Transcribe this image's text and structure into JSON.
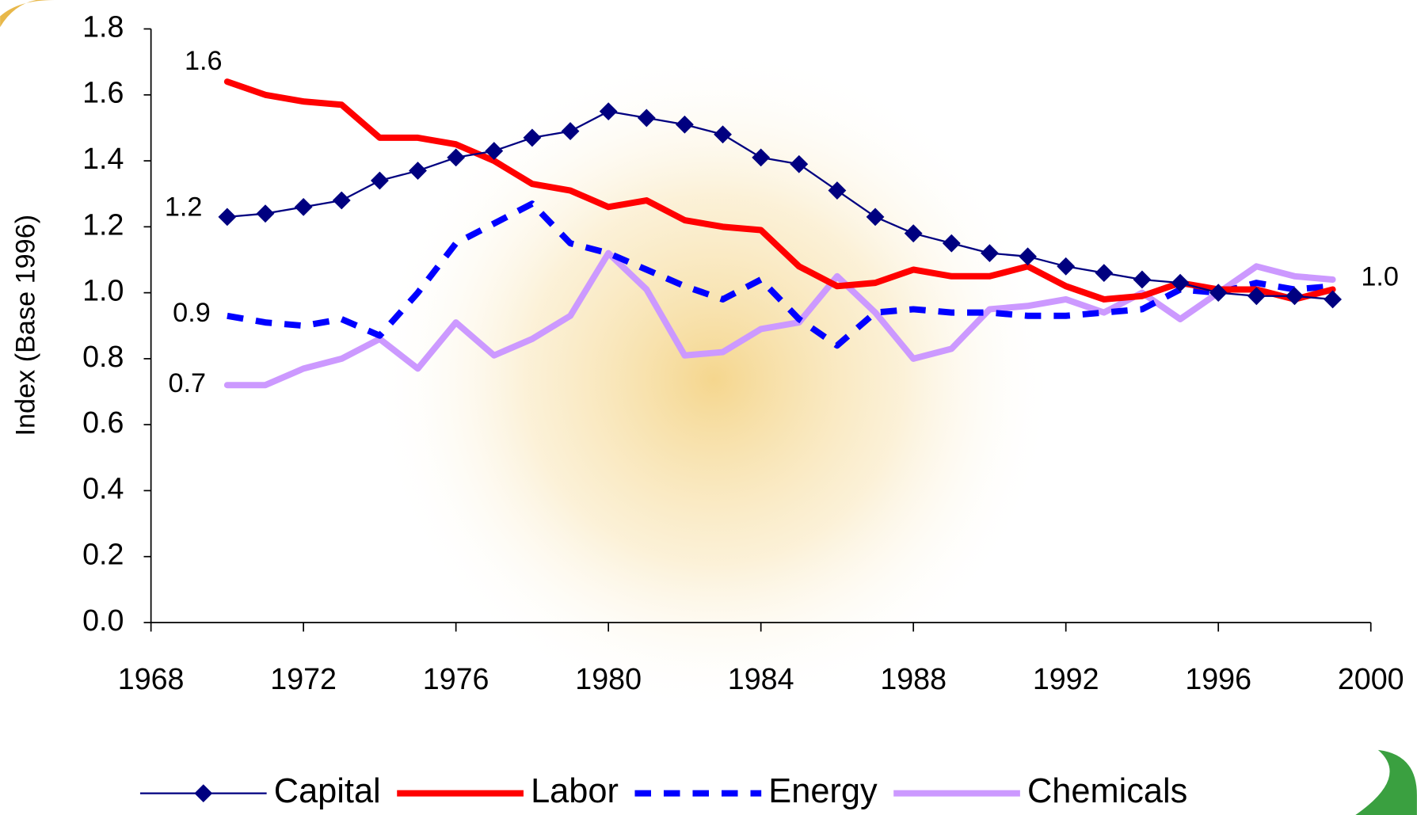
{
  "chart_data": {
    "type": "line",
    "ylabel": "Index (Base 1996)",
    "x": [
      1970,
      1971,
      1972,
      1973,
      1974,
      1975,
      1976,
      1977,
      1978,
      1979,
      1980,
      1981,
      1982,
      1983,
      1984,
      1985,
      1986,
      1987,
      1988,
      1989,
      1990,
      1991,
      1992,
      1993,
      1994,
      1995,
      1996,
      1997,
      1998,
      1999
    ],
    "series": [
      {
        "name": "Capital",
        "color": "#000080",
        "width": 2,
        "marker": "diamond",
        "values": [
          1.23,
          1.24,
          1.26,
          1.28,
          1.34,
          1.37,
          1.41,
          1.43,
          1.47,
          1.49,
          1.55,
          1.53,
          1.51,
          1.48,
          1.41,
          1.39,
          1.31,
          1.23,
          1.18,
          1.15,
          1.12,
          1.11,
          1.08,
          1.06,
          1.04,
          1.03,
          1.0,
          0.99,
          0.99,
          0.98
        ]
      },
      {
        "name": "Labor",
        "color": "#ff0000",
        "width": 7,
        "values": [
          1.64,
          1.6,
          1.58,
          1.57,
          1.47,
          1.47,
          1.45,
          1.4,
          1.33,
          1.31,
          1.26,
          1.28,
          1.22,
          1.2,
          1.19,
          1.08,
          1.02,
          1.03,
          1.07,
          1.05,
          1.05,
          1.08,
          1.02,
          0.98,
          0.99,
          1.03,
          1.01,
          1.01,
          0.98,
          1.01
        ]
      },
      {
        "name": "Energy",
        "color": "#0000ff",
        "width": 7,
        "dash": true,
        "values": [
          0.93,
          0.91,
          0.9,
          0.92,
          0.87,
          1.0,
          1.15,
          1.21,
          1.27,
          1.15,
          1.12,
          1.07,
          1.02,
          0.98,
          1.04,
          0.92,
          0.84,
          0.94,
          0.95,
          0.94,
          0.94,
          0.93,
          0.93,
          0.94,
          0.95,
          1.01,
          1.0,
          1.03,
          1.01,
          1.02
        ]
      },
      {
        "name": "Chemicals",
        "color": "#cc99ff",
        "width": 7,
        "values": [
          0.72,
          0.72,
          0.77,
          0.8,
          0.86,
          0.77,
          0.91,
          0.81,
          0.86,
          0.93,
          1.12,
          1.01,
          0.81,
          0.82,
          0.89,
          0.91,
          1.05,
          0.94,
          0.8,
          0.83,
          0.95,
          0.96,
          0.98,
          0.94,
          1.0,
          0.92,
          1.0,
          1.08,
          1.05,
          1.04
        ]
      }
    ],
    "annotations": [
      "1.6",
      "1.2",
      "0.9",
      "0.7",
      "1.0"
    ],
    "xlim": [
      1968,
      2000
    ],
    "xticks": [
      1968,
      1972,
      1976,
      1980,
      1984,
      1988,
      1992,
      1996,
      2000
    ],
    "ylim": [
      0,
      1.8
    ],
    "yticks": [
      {
        "value": 0,
        "label": "0.0"
      },
      0.2,
      0.4,
      0.6,
      0.8,
      {
        "value": 1,
        "label": "1.0"
      },
      1.2,
      1.4,
      1.6,
      1.8
    ],
    "legend": "bottom"
  }
}
